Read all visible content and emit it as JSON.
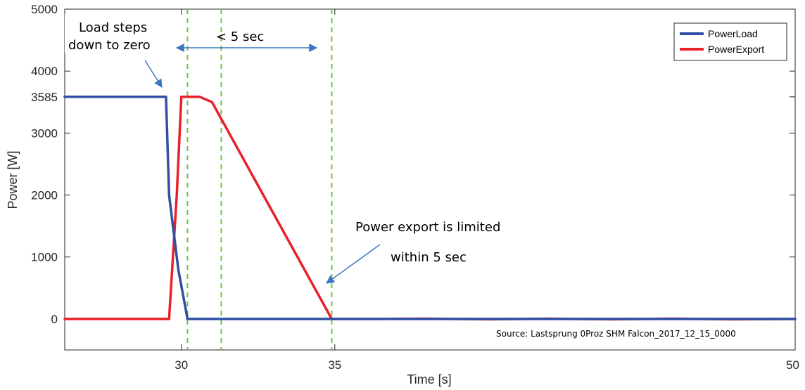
{
  "chart_data": {
    "type": "line",
    "xlabel": "Time [s]",
    "ylabel": "Power [W]",
    "xlim": [
      26.2,
      50
    ],
    "ylim": [
      -500,
      5000
    ],
    "xticks": [
      30,
      35,
      50
    ],
    "yticks": [
      0,
      1000,
      2000,
      3000,
      3585,
      4000,
      5000
    ],
    "grid": false,
    "legend_position": "top-right",
    "series": [
      {
        "name": "PowerLoad",
        "color": "#2E4FA3",
        "x": [
          26.2,
          29.5,
          29.6,
          29.9,
          30.2,
          50
        ],
        "y": [
          3585,
          3585,
          2000,
          800,
          0,
          0
        ]
      },
      {
        "name": "PowerExport",
        "color": "#E8202A",
        "x": [
          26.2,
          29.6,
          29.85,
          30.0,
          30.6,
          31.0,
          34.9,
          36,
          38,
          40,
          42,
          44,
          46,
          48,
          50
        ],
        "y": [
          0,
          0,
          2000,
          3585,
          3585,
          3500,
          0,
          0,
          5,
          -5,
          5,
          -5,
          5,
          -5,
          0
        ]
      }
    ],
    "vlines": [
      30.2,
      31.3,
      34.9
    ],
    "annotations": {
      "load_steps_line1": "Load steps",
      "load_steps_line2": "down to zero",
      "duration": "< 5 sec",
      "export_limited_line1": "Power export is limited",
      "export_limited_line2": "within 5 sec",
      "source": "Source: Lastsprung 0Proz SHM Falcon_2017_12_15_0000"
    }
  }
}
